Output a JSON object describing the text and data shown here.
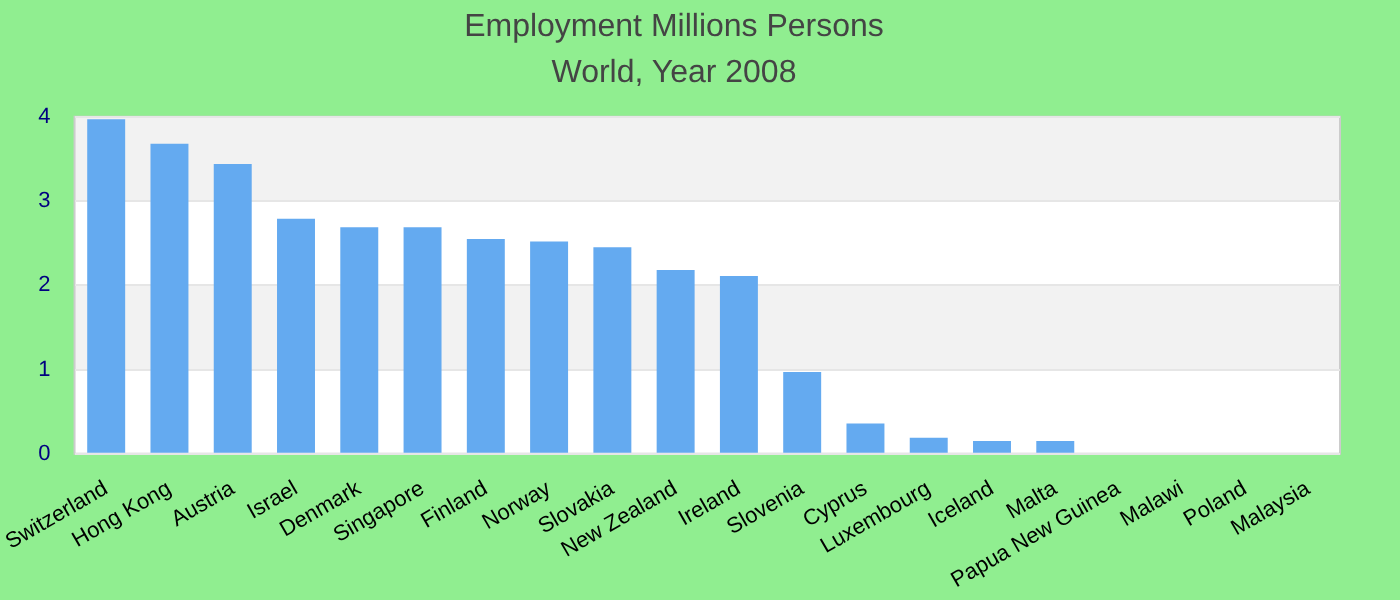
{
  "chart_data": {
    "type": "bar",
    "title": "Employment Millions Persons",
    "subtitle": "World, Year 2008",
    "categories": [
      "Switzerland",
      "Hong Kong",
      "Austria",
      "Israel",
      "Denmark",
      "Singapore",
      "Finland",
      "Norway",
      "Slovakia",
      "New Zealand",
      "Ireland",
      "Slovenia",
      "Cyprus",
      "Luxembourg",
      "Iceland",
      "Malta",
      "Papua New Guinea",
      "Malawi",
      "Poland",
      "Malaysia"
    ],
    "values": [
      3.97,
      3.68,
      3.44,
      2.79,
      2.69,
      2.69,
      2.55,
      2.52,
      2.45,
      2.18,
      2.11,
      0.97,
      0.36,
      0.19,
      0.15,
      0.15,
      0,
      0,
      0,
      0
    ],
    "color": "#64aaf0",
    "ylim": [
      0,
      4
    ],
    "yticks": [
      0,
      1,
      2,
      3,
      4
    ],
    "grid": "y",
    "legend": false
  }
}
